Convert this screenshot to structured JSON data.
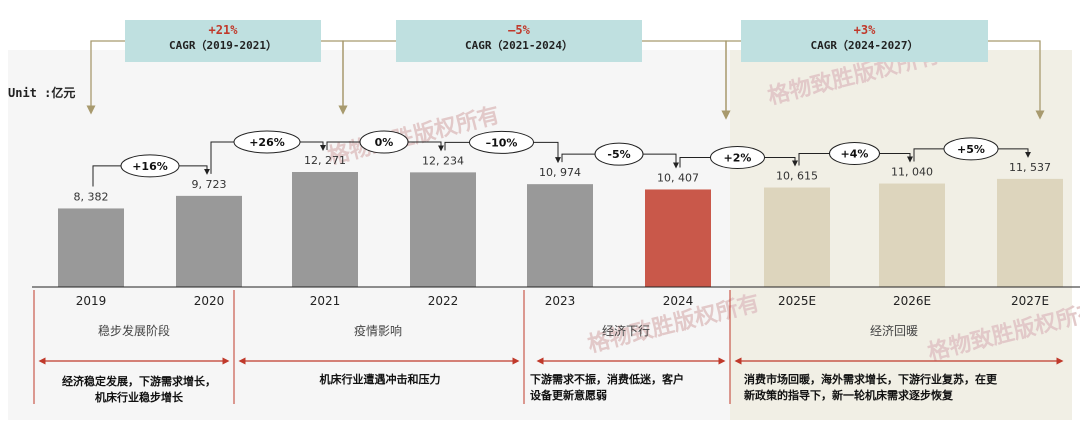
{
  "unit_label": "Unit :亿元",
  "cagr_boxes": [
    {
      "pct": "+21%",
      "label": "CAGR（2019-2021）"
    },
    {
      "pct": "–5%",
      "label": "CAGR（2021-2024）"
    },
    {
      "pct": "+3%",
      "label": "CAGR（2024-2027）"
    }
  ],
  "phases": [
    {
      "label": "稳步发展阶段",
      "desc": [
        "经济稳定发展，下游需求增长，",
        "机床行业稳步增长"
      ]
    },
    {
      "label": "疫情影响",
      "desc": [
        "机床行业遭遇冲击和压力"
      ]
    },
    {
      "label": "经济下行",
      "desc": [
        "下游需求不振，消费低迷，客户",
        "设备更新意愿弱"
      ]
    },
    {
      "label": "经济回暖",
      "desc": [
        "消费市场回暖，海外需求增长，下游行业复苏，在更",
        "新政策的指导下，新一轮机床需求逐步恢复"
      ]
    }
  ],
  "watermark": "格物致胜版权所有",
  "colors": {
    "bar_gray": "#999999",
    "bar_red": "#c9584a",
    "bar_beige": "#ddd5bd",
    "forecast_bg": "#f1efe5",
    "accent_red": "#c0392b",
    "cagr_box": "#bfe0e0"
  },
  "chart_data": {
    "type": "bar",
    "categories": [
      "2019",
      "2020",
      "2021",
      "2022",
      "2023",
      "2024",
      "2025E",
      "2026E",
      "2027E"
    ],
    "values": [
      8382,
      9723,
      12271,
      12234,
      10974,
      10407,
      10615,
      11040,
      11537
    ],
    "value_labels": [
      "8, 382",
      "9, 723",
      "12, 271",
      "12, 234",
      "10, 974",
      "10, 407",
      "10, 615",
      "11, 040",
      "11, 537"
    ],
    "growth_labels": [
      "+16%",
      "+26%",
      "0%",
      "–10%",
      "-5%",
      "+2%",
      "+4%",
      "+5%"
    ],
    "bar_styles": [
      "gray",
      "gray",
      "gray",
      "gray",
      "gray",
      "red",
      "beige",
      "beige",
      "beige"
    ],
    "ylabel": "Unit :亿元",
    "grid": false
  }
}
